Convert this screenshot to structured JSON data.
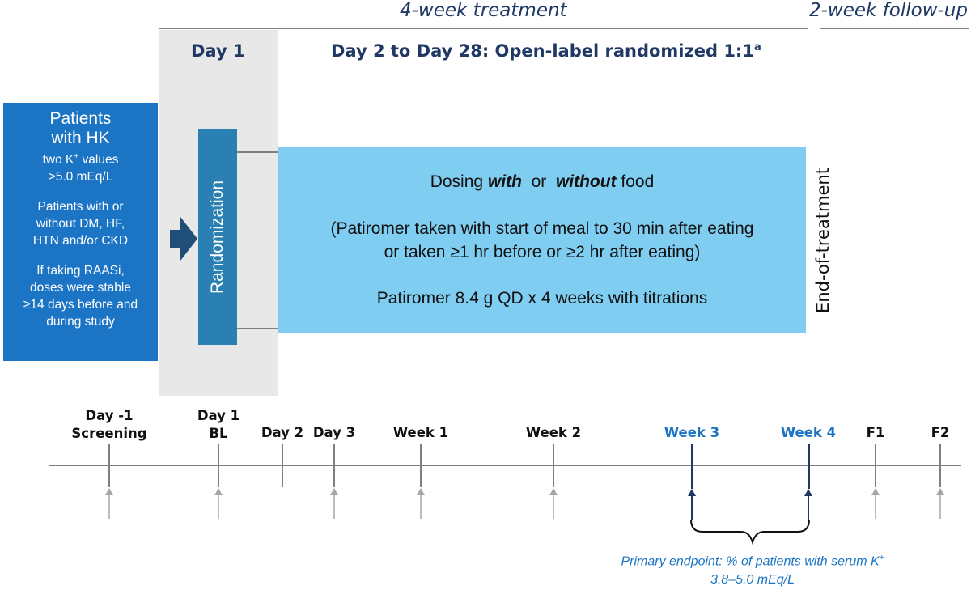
{
  "phases": {
    "treatment_label": "4-week treatment",
    "followup_label": "2-week follow-up"
  },
  "headers": {
    "day1": "Day 1",
    "day2_28": "Day 2 to Day 28: Open-label randomized 1:1",
    "day2_28_superscript": "a"
  },
  "patients_box": {
    "title_line1": "Patients",
    "title_line2": "with HK",
    "k_line1_pre": "two K",
    "k_line1_sup": "+",
    "k_line1_post": " values",
    "k_line2": ">5.0 mEq/L",
    "cond_line1": "Patients with or",
    "cond_line2": "without DM, HF,",
    "cond_line3": "HTN and/or CKD",
    "raasi_line1": "If taking RAASi,",
    "raasi_line2": "doses were stable",
    "raasi_line3": "≥14 days before and",
    "raasi_line4": "during study"
  },
  "randomization_label": "Randomization",
  "dosing_box": {
    "line1_pre": "Dosing ",
    "line1_with": "with",
    "line1_mid": "  or  ",
    "line1_without": "without",
    "line1_post": " food",
    "line2": "(Patiromer taken with start of meal to 30 min after eating",
    "line3": "or taken ≥1 hr before or ≥2 hr after eating)",
    "line4": "Patiromer 8.4 g QD x 4 weeks with titrations"
  },
  "end_of_treatment_label": "End-of-treatment",
  "timeline": {
    "points": [
      {
        "line1": "Day -1",
        "line2": "Screening",
        "highlight": false,
        "arrow": true
      },
      {
        "line1": "Day 1",
        "line2": "BL",
        "highlight": false,
        "arrow": true
      },
      {
        "line1": "Day 2",
        "line2": "",
        "highlight": false,
        "arrow": false
      },
      {
        "line1": "Day 3",
        "line2": "",
        "highlight": false,
        "arrow": true
      },
      {
        "line1": "Week 1",
        "line2": "",
        "highlight": false,
        "arrow": true
      },
      {
        "line1": "Week 2",
        "line2": "",
        "highlight": false,
        "arrow": true
      },
      {
        "line1": "Week 3",
        "line2": "",
        "highlight": true,
        "arrow": true
      },
      {
        "line1": "Week 4",
        "line2": "",
        "highlight": true,
        "arrow": true
      },
      {
        "line1": "F1",
        "line2": "",
        "highlight": false,
        "arrow": true
      },
      {
        "line1": "F2",
        "line2": "",
        "highlight": false,
        "arrow": true
      }
    ]
  },
  "primary_endpoint": {
    "line1_pre": "Primary endpoint: % of patients with serum K",
    "line1_sup": "+",
    "line2": "3.8–5.0 mEq/L"
  },
  "colors": {
    "navy": "#1f3864",
    "patients_blue": "#1c74c4",
    "randomization_blue": "#2a7fb3",
    "dosing_light_blue": "#7fcdf0",
    "highlight_blue": "#1c74c4",
    "highlight_tick": "#1f3864",
    "gray": "#7f7f7f"
  }
}
